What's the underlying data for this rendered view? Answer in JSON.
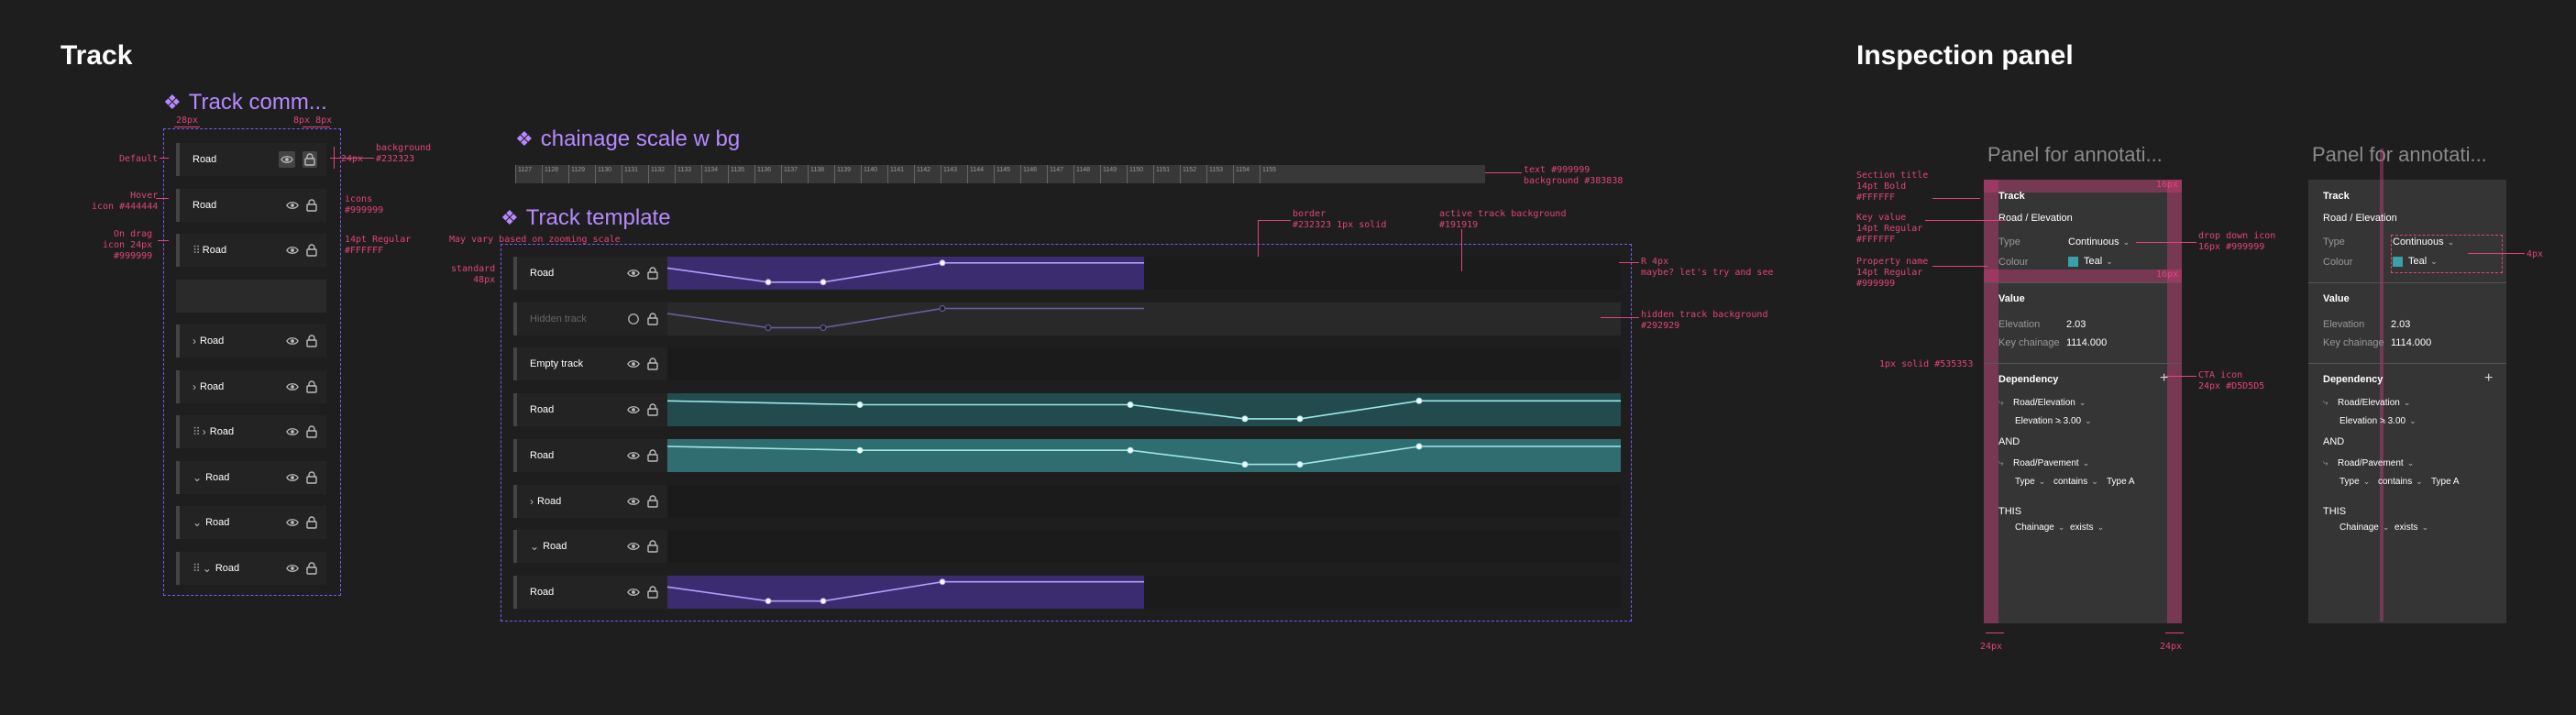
{
  "sections": {
    "track": "Track",
    "inspection": "Inspection panel"
  },
  "track_comm": {
    "title": "Track comm...",
    "rows": [
      {
        "label": "Road",
        "chev": "",
        "drag": false
      },
      {
        "label": "Road",
        "chev": "",
        "drag": false
      },
      {
        "label": "Road",
        "chev": "",
        "drag": true
      },
      {
        "label": "",
        "chev": "",
        "drag": false
      },
      {
        "label": "Road",
        "chev": "›",
        "drag": false
      },
      {
        "label": "Road",
        "chev": "›",
        "drag": false
      },
      {
        "label": "Road",
        "chev": "›",
        "drag": true
      },
      {
        "label": "Road",
        "chev": "⌄",
        "drag": false
      },
      {
        "label": "Road",
        "chev": "⌄",
        "drag": false
      },
      {
        "label": "Road",
        "chev": "⌄",
        "drag": true
      }
    ],
    "specs": {
      "default": "Default",
      "hover": "Hover\nicon #444444",
      "drag": "On drag\nicon 24px\n#999999",
      "bg": "background\n#232323",
      "icons": "icons\n#999999",
      "text": "14pt Regular\n#FFFFFF",
      "dim_28": "28px",
      "dim_8": "8px 8px",
      "dim_24": "24px"
    }
  },
  "chainage": {
    "title": "chainage scale w bg",
    "ticks": [
      "1127",
      "1128",
      "1129",
      "1130",
      "1131",
      "1132",
      "1133",
      "1134",
      "1135",
      "1136",
      "1137",
      "1138",
      "1139",
      "1140",
      "1141",
      "1142",
      "1143",
      "1144",
      "1145",
      "1146",
      "1147",
      "1148",
      "1149",
      "1150",
      "1151",
      "1152",
      "1153",
      "1154",
      "1155"
    ],
    "spec": "text #999999\nbackground #383838"
  },
  "template": {
    "title": "Track template",
    "rows": [
      {
        "label": "Road",
        "kind": "purple"
      },
      {
        "label": "Hidden track",
        "kind": "hidden"
      },
      {
        "label": "Empty track",
        "kind": "empty"
      },
      {
        "label": "Road",
        "kind": "teal"
      },
      {
        "label": "Road",
        "kind": "teal2"
      },
      {
        "label": "Road",
        "kind": "chev",
        "chev": "›"
      },
      {
        "label": "Road",
        "kind": "chev",
        "chev": "⌄"
      },
      {
        "label": "Road",
        "kind": "purple2"
      }
    ],
    "specs": {
      "vary": "May vary based on zooming scale",
      "standard": "standard\n48px",
      "border": "border\n#232323 1px solid",
      "active": "active track background\n#191919",
      "r4": "R 4px\nmaybe? let's try and see",
      "hidden": "hidden track background\n#292929"
    }
  },
  "panel": {
    "title": "Panel for annotati...",
    "section_track": "Track",
    "key_value": "Road / Elevation",
    "type_label": "Type",
    "type_value": "Continuous",
    "colour_label": "Colour",
    "colour_value": "Teal",
    "teal_color": "#3aa1a9",
    "section_value": "Value",
    "elevation_label": "Elevation",
    "elevation_value": "2.03",
    "chainage_label": "Key chainage",
    "chainage_value": "1114.000",
    "section_dependency": "Dependency",
    "dep1": "Road/Elevation",
    "dep1_a": "Elevation",
    "dep1_b": "> 3.00",
    "and": "AND",
    "dep2": "Road/Pavement",
    "dep2_a": "Type",
    "dep2_b": "contains",
    "dep2_c": "Type A",
    "this": "THIS",
    "dep3_a": "Chainage",
    "dep3_b": "exists",
    "add": "+",
    "specs": {
      "section": "Section title\n14pt Bold\n#FFFFFF",
      "keyval": "Key value\n14pt Regular\n#FFFFFF",
      "propname": "Property name\n14pt Regular\n#999999",
      "solid": "1px solid #535353",
      "dropdown": "drop down icon\n16px #999999",
      "cta": "CTA icon\n24px #D5D5D5",
      "d16a": "16px",
      "d16b": "16px",
      "d24a": "24px",
      "d24b": "24px",
      "d4": "4px"
    }
  }
}
